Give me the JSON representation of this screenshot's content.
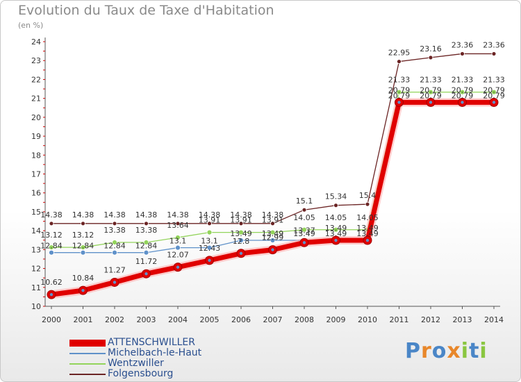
{
  "chart_title": "Evolution du Taux de Taxe d'Habitation",
  "chart_subtitle": "(en %)",
  "brand": {
    "letters": [
      "P",
      "r",
      "o",
      "x",
      "i",
      "t",
      "i"
    ],
    "colors": [
      "#4a86c7",
      "#e8872a",
      "#4a86c7",
      "#e8872a",
      "#8ac640",
      "#4a86c7",
      "#8ac640"
    ]
  },
  "chart_data": {
    "type": "line",
    "title": "Evolution du Taux de Taxe d'Habitation",
    "subtitle": "(en %)",
    "xlabel": "",
    "ylabel": "",
    "ylim": [
      10,
      24
    ],
    "grid": false,
    "legend_position": "bottom-left",
    "x": [
      "2000",
      "2001",
      "2002",
      "2003",
      "2004",
      "2005",
      "2006",
      "2007",
      "2008",
      "2009",
      "2010",
      "2011",
      "2012",
      "2013",
      "2014"
    ],
    "y_ticks": [
      "10",
      "11",
      "12",
      "13",
      "14",
      "15",
      "16",
      "17",
      "18",
      "19",
      "20",
      "21",
      "22",
      "23",
      "24"
    ],
    "series": [
      {
        "name": "ATTENSCHWILLER",
        "color": "#e00000",
        "labels": [
          "10.62",
          "10.84",
          "11.27",
          "11.72",
          "12.07",
          "12.43",
          "12.8",
          "12.99",
          "13.37",
          "13.49",
          "13.49",
          "20.79",
          "20.79",
          "20.79",
          "20.79"
        ],
        "values": [
          10.62,
          10.84,
          11.27,
          11.72,
          12.07,
          12.43,
          12.8,
          12.99,
          13.37,
          13.49,
          13.49,
          20.79,
          20.79,
          20.79,
          20.79
        ]
      },
      {
        "name": "Michelbach-le-Haut",
        "color": "#5f91c9",
        "labels": [
          "12.84",
          "12.84",
          "12.84",
          "12.84",
          "13.1",
          "13.1",
          "13.49",
          "13.49",
          "13.49",
          "13.49",
          "13.49",
          "20.79",
          "20.79",
          "20.79",
          "20.79"
        ],
        "values": [
          12.84,
          12.84,
          12.84,
          12.84,
          13.1,
          13.1,
          13.49,
          13.49,
          13.49,
          13.49,
          13.49,
          20.79,
          20.79,
          20.79,
          20.79
        ]
      },
      {
        "name": "Wentzwiller",
        "color": "#93d45b",
        "labels": [
          "13.12",
          "13.12",
          "13.38",
          "13.38",
          "13.64",
          "13.91",
          "13.91",
          "13.91",
          "14.05",
          "14.05",
          "14.05",
          "21.33",
          "21.33",
          "21.33",
          "21.33"
        ],
        "values": [
          13.12,
          13.12,
          13.38,
          13.38,
          13.64,
          13.91,
          13.91,
          13.91,
          14.05,
          14.05,
          14.05,
          21.33,
          21.33,
          21.33,
          21.33
        ]
      },
      {
        "name": "Folgensbourg",
        "color": "#6b2424",
        "labels": [
          "14.38",
          "14.38",
          "14.38",
          "14.38",
          "14.38",
          "14.38",
          "14.38",
          "14.38",
          "15.1",
          "15.34",
          "15.4",
          "22.95",
          "23.16",
          "23.36",
          "23.36"
        ],
        "values": [
          14.38,
          14.38,
          14.38,
          14.38,
          14.38,
          14.38,
          14.38,
          14.38,
          15.1,
          15.34,
          15.4,
          22.95,
          23.16,
          23.36,
          23.36
        ]
      }
    ]
  }
}
